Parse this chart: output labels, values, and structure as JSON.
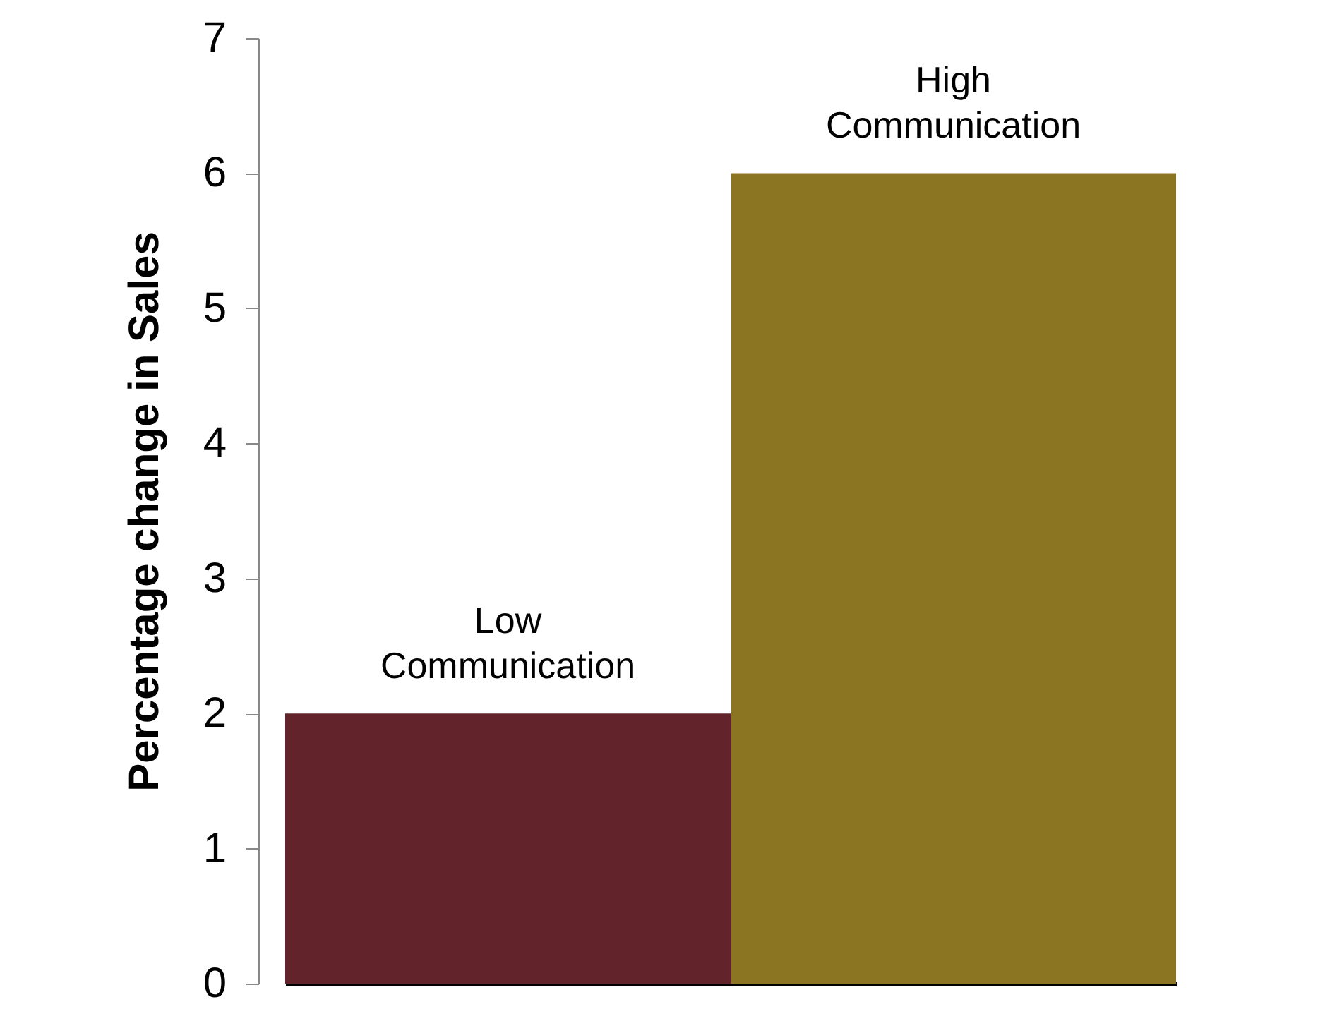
{
  "chart_data": {
    "type": "bar",
    "ylabel": "Percentage change in Sales",
    "categories": [
      "Low Communication",
      "High Communication"
    ],
    "values": [
      2,
      6
    ],
    "colors": [
      "#62232a",
      "#8c7522"
    ],
    "ylim": [
      0,
      7
    ],
    "yticks": [
      0,
      1,
      2,
      3,
      4,
      5,
      6,
      7
    ],
    "tick_labels": "y"
  }
}
